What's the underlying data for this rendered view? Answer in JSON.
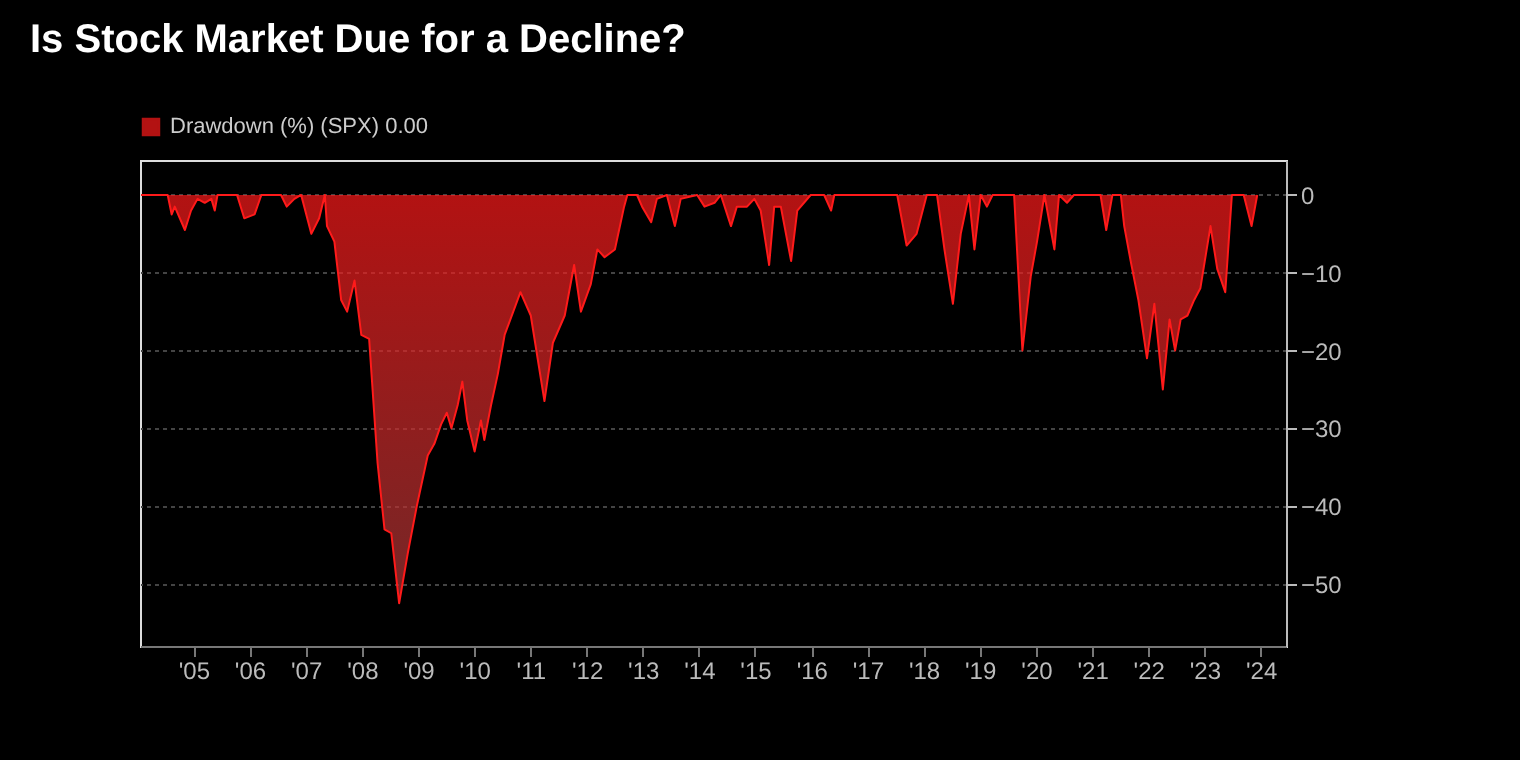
{
  "chart_data": {
    "type": "area",
    "title": "Is Stock Market Due for a Decline?",
    "x": [
      "2004-07-26",
      "2005-01-15",
      "2005-02-10",
      "2005-03-02",
      "2005-05-07",
      "2005-06-16",
      "2005-07-28",
      "2005-09-13",
      "2005-10-26",
      "2005-11-17",
      "2005-12-05",
      "2006-04-11",
      "2006-05-28",
      "2006-08-03",
      "2006-09-16",
      "2007-01-22",
      "2007-02-28",
      "2007-04-19",
      "2007-06-02",
      "2007-08-07",
      "2007-09-27",
      "2007-11-03",
      "2007-11-17",
      "2008-01-04",
      "2008-02-17",
      "2008-03-27",
      "2008-05-14",
      "2008-06-27",
      "2008-08-17",
      "2008-10-11",
      "2008-11-25",
      "2009-01-08",
      "2009-02-28",
      "2009-04-26",
      "2009-06-23",
      "2009-09-02",
      "2009-10-15",
      "2009-11-28",
      "2010-01-04",
      "2010-02-03",
      "2010-03-16",
      "2010-04-15",
      "2010-05-17",
      "2010-07-04",
      "2010-08-14",
      "2010-09-05",
      "2010-10-19",
      "2010-12-02",
      "2011-01-15",
      "2011-04-28",
      "2011-07-04",
      "2011-10-01",
      "2011-11-25",
      "2012-02-10",
      "2012-04-11",
      "2012-05-25",
      "2012-07-28",
      "2012-09-09",
      "2012-10-26",
      "2013-01-01",
      "2013-03-02",
      "2013-03-23",
      "2013-05-25",
      "2013-06-27",
      "2013-08-25",
      "2013-10-01",
      "2013-12-05",
      "2014-01-26",
      "2014-03-05",
      "2014-06-20",
      "2014-08-07",
      "2014-10-11",
      "2014-11-21",
      "2015-01-26",
      "2015-03-05",
      "2015-05-10",
      "2015-06-27",
      "2015-08-07",
      "2015-10-01",
      "2015-11-03",
      "2015-12-16",
      "2016-02-21",
      "2016-04-01",
      "2016-06-27",
      "2016-09-23",
      "2016-11-07",
      "2016-11-28",
      "2018-01-11",
      "2018-03-13",
      "2018-05-17",
      "2018-07-22",
      "2018-09-27",
      "2018-11-14",
      "2019-01-08",
      "2019-02-28",
      "2019-04-22",
      "2019-05-28",
      "2019-07-08",
      "2019-08-17",
      "2019-09-23",
      "2019-12-23",
      "2020-02-10",
      "2020-04-04",
      "2020-05-28",
      "2020-07-08",
      "2020-08-25",
      "2020-10-29",
      "2020-11-28",
      "2021-01-19",
      "2021-03-05",
      "2021-08-25",
      "2021-10-01",
      "2021-11-10",
      "2022-01-04",
      "2022-01-26",
      "2022-03-09",
      "2022-04-28",
      "2022-06-23",
      "2022-08-10",
      "2022-10-04",
      "2022-11-17",
      "2022-12-23",
      "2023-01-28",
      "2023-03-13",
      "2023-04-26",
      "2023-06-05",
      "2023-08-10",
      "2023-09-23",
      "2023-11-14",
      "2023-12-27",
      "2024-03-13",
      "2024-05-03",
      "2024-06-09"
    ],
    "series": [
      {
        "name": "Drawdown (%) (SPX) 0.00",
        "color": "#ff1a1a",
        "values": [
          0,
          0,
          -2.5,
          -1.5,
          -4.5,
          -2,
          -0.5,
          -1,
          -0.5,
          -2,
          0,
          0,
          -3,
          -2.5,
          0,
          0,
          -1.5,
          -0.5,
          0,
          -5,
          -3,
          0,
          -4,
          -6,
          -13.5,
          -15,
          -11,
          -18,
          -18.5,
          -34.5,
          -43,
          -43.5,
          -52.5,
          -46,
          -40,
          -33.5,
          -32,
          -29.5,
          -28,
          -30,
          -27,
          -24,
          -29,
          -33,
          -29,
          -31.5,
          -27,
          -23,
          -18,
          -12.5,
          -15.5,
          -26.5,
          -19,
          -15.5,
          -9,
          -15,
          -11.5,
          -7,
          -8,
          -7,
          -1.5,
          0,
          0,
          -1.5,
          -3.5,
          -0.5,
          0,
          -4,
          -0.5,
          0,
          -1.5,
          -1,
          0,
          -4,
          -1.5,
          -1.5,
          -0.5,
          -2,
          -9,
          -1.5,
          -1.5,
          -8.5,
          -2,
          0,
          0,
          -2,
          0,
          0,
          -6.5,
          -5,
          0,
          0,
          -7,
          -14,
          -5,
          0,
          -7,
          0,
          -1.5,
          0,
          0,
          0,
          -20,
          -10.5,
          -6,
          0,
          -7,
          0,
          -1,
          0,
          0,
          -4.5,
          0,
          0,
          -4,
          -8.5,
          -13.5,
          -21,
          -14,
          -25,
          -16,
          -20,
          -16,
          -15.5,
          -13.5,
          -12,
          -4,
          -9.5,
          -12.5,
          0,
          0,
          -4,
          0
        ]
      }
    ],
    "xlim": [
      "2004-07-19",
      "2024-12-13"
    ],
    "xticks": [
      {
        "value": "2005-07-01",
        "label": "'05"
      },
      {
        "value": "2006-07-01",
        "label": "'06"
      },
      {
        "value": "2007-07-01",
        "label": "'07"
      },
      {
        "value": "2008-07-01",
        "label": "'08"
      },
      {
        "value": "2009-07-01",
        "label": "'09"
      },
      {
        "value": "2010-07-01",
        "label": "'10"
      },
      {
        "value": "2011-07-01",
        "label": "'11"
      },
      {
        "value": "2012-07-01",
        "label": "'12"
      },
      {
        "value": "2013-07-01",
        "label": "'13"
      },
      {
        "value": "2014-07-01",
        "label": "'14"
      },
      {
        "value": "2015-07-01",
        "label": "'15"
      },
      {
        "value": "2016-07-01",
        "label": "'16"
      },
      {
        "value": "2017-07-01",
        "label": "'17"
      },
      {
        "value": "2018-07-01",
        "label": "'18"
      },
      {
        "value": "2019-07-01",
        "label": "'19"
      },
      {
        "value": "2020-07-01",
        "label": "'20"
      },
      {
        "value": "2021-07-01",
        "label": "'21"
      },
      {
        "value": "2022-07-01",
        "label": "'22"
      },
      {
        "value": "2023-07-01",
        "label": "'23"
      },
      {
        "value": "2024-07-01",
        "label": "'24"
      }
    ],
    "ylim": [
      -58,
      4.5
    ],
    "yticks": [
      -50,
      -40,
      -30,
      -20,
      -10,
      0
    ],
    "grid": "y",
    "legend": "top left"
  }
}
